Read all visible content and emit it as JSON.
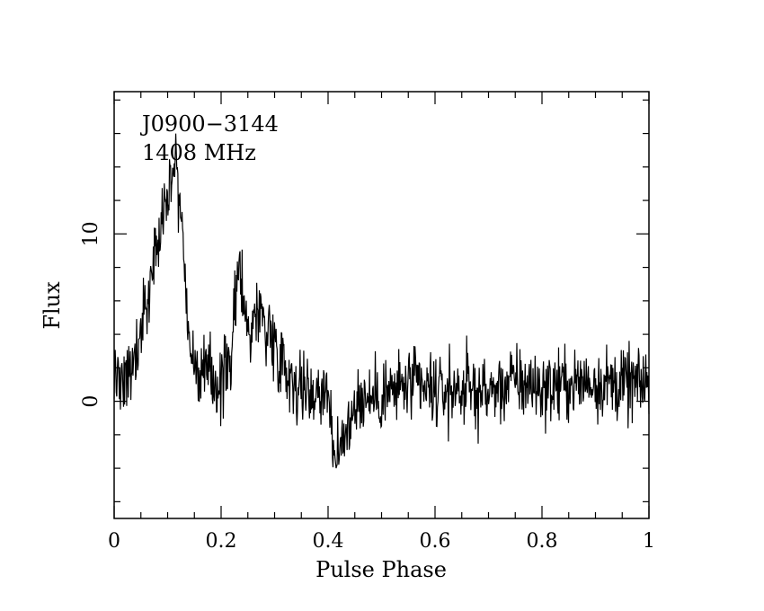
{
  "chart_data": {
    "type": "line",
    "xlabel": "Pulse Phase",
    "ylabel": "Flux",
    "xlim": [
      0,
      1
    ],
    "ylim": [
      -7,
      18.5
    ],
    "x_major_ticks": [
      0,
      0.2,
      0.4,
      0.6,
      0.8,
      1
    ],
    "x_tick_labels": [
      "0",
      "0.2",
      "0.4",
      "0.6",
      "0.8",
      "1"
    ],
    "y_major_ticks": [
      0,
      10
    ],
    "y_tick_labels": [
      "0",
      "10"
    ],
    "grid": false,
    "annotations": [
      "J0900−3144",
      "1408 MHz"
    ],
    "series": [
      {
        "x": [
          0,
          0.02,
          0.04,
          0.06,
          0.08,
          0.1,
          0.115,
          0.13,
          0.14,
          0.15,
          0.17,
          0.2,
          0.22,
          0.235,
          0.25,
          0.27,
          0.3,
          0.33,
          0.36,
          0.4,
          0.415,
          0.45,
          0.5,
          0.55,
          0.6,
          0.65,
          0.7,
          0.75,
          0.8,
          0.85,
          0.9,
          0.95,
          1
        ],
        "values": [
          1.5,
          1.5,
          2.5,
          6.0,
          9.0,
          12.0,
          15.0,
          9.0,
          4.0,
          2.0,
          1.5,
          1.0,
          3.0,
          8.5,
          4.0,
          5.5,
          3.5,
          1.5,
          0.5,
          0.8,
          -4.0,
          0.0,
          0.3,
          1.0,
          0.5,
          0.8,
          0.5,
          1.2,
          0.8,
          1.0,
          1.2,
          1.0,
          1.0
        ]
      }
    ]
  }
}
